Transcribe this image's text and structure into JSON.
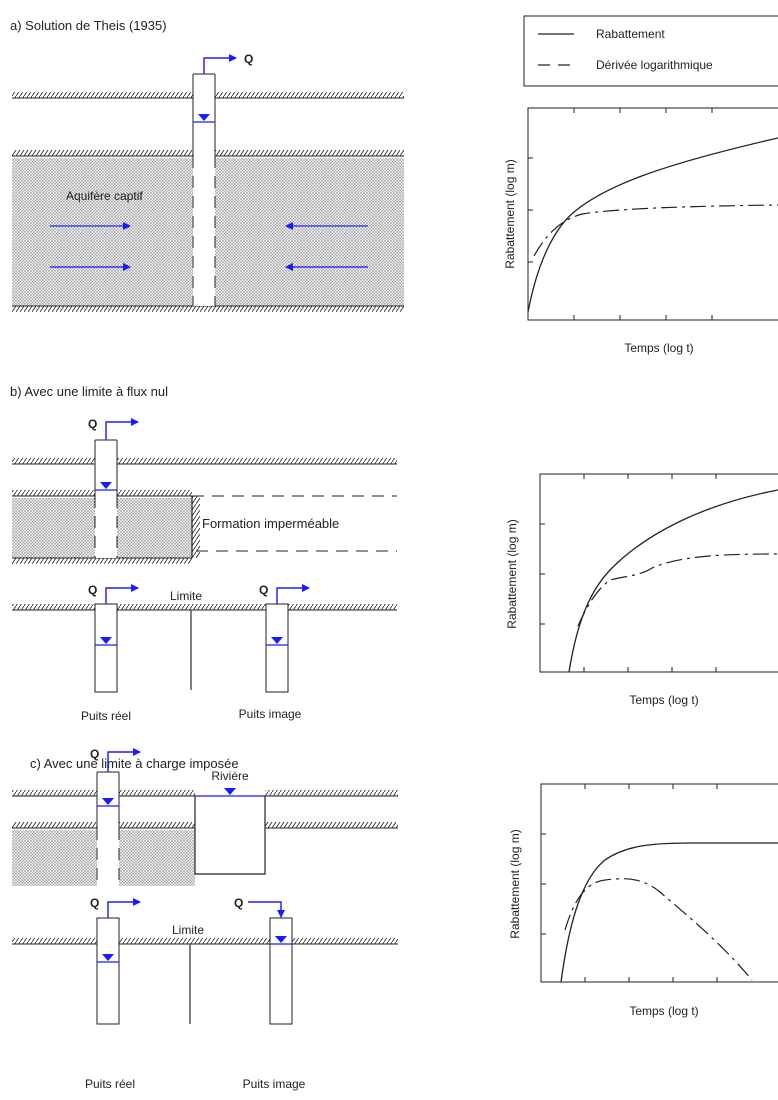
{
  "legend": {
    "solid_label": "Rabattement",
    "dashed_label": "Dérivée logarithmique"
  },
  "panels": [
    {
      "title": "a) Solution de Theis (1935)",
      "flow_label": "Q",
      "aquifer_label": "Aquifère captif",
      "plot": {
        "ylabel": "Rabattement (log m)",
        "xlabel": "Temps (log t)"
      }
    },
    {
      "title": "b) Avec une limite à flux nul",
      "flow_label": "Q",
      "formation_label": "Formation imperméable",
      "boundary_label": "Limite",
      "real_well_label": "Puits réel",
      "image_well_label": "Puits image",
      "plot": {
        "ylabel": "Rabattement (log m)",
        "xlabel": "Temps (log t)"
      }
    },
    {
      "title": "c) Avec une limite à charge imposée",
      "flow_label": "Q",
      "river_label": "Rivière",
      "boundary_label": "Limite",
      "real_well_label": "Puits réel",
      "image_well_label": "Puits image",
      "plot": {
        "ylabel": "Rabattement (log m)",
        "xlabel": "Temps (log t)"
      }
    }
  ],
  "colors": {
    "water": "#1a1aff",
    "line": "#222222",
    "stipple": "#c8c8c8"
  }
}
